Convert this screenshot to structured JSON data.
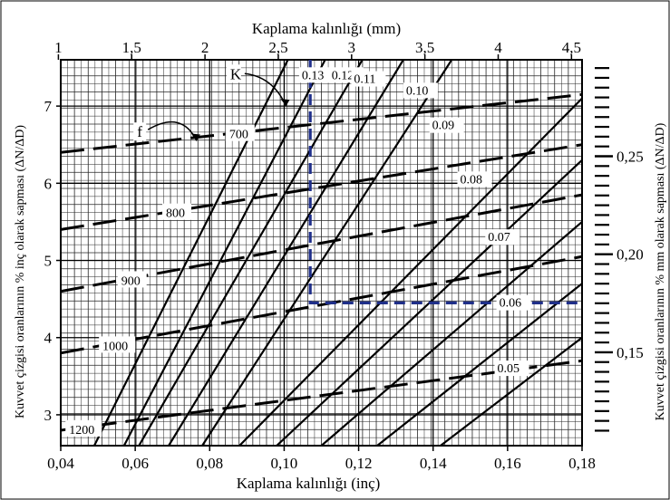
{
  "chart_data": {
    "type": "line",
    "title_top": "Kaplama kalınlığı (mm)",
    "xlabel": "Kaplama kalınlığı (inç)",
    "ylabel_left": "Kuvvet çizgisi oranlarının % inç olarak sapması (ΔN/ΔD)",
    "ylabel_right": "Kuvvet çizgisi oranlarının % mm olarak sapması (ΔN/ΔD)",
    "xlim": [
      0.04,
      0.18
    ],
    "ylim": [
      2.6,
      7.6
    ],
    "grid": true,
    "x_ticks": [
      "0,04",
      "0,06",
      "0,08",
      "0,10",
      "0,12",
      "0,14",
      "0,16",
      "0,18"
    ],
    "x_tick_values": [
      0.04,
      0.06,
      0.08,
      0.1,
      0.12,
      0.14,
      0.16,
      0.18
    ],
    "top_ticks": [
      "1",
      "1,5",
      "2",
      "2,5",
      "3",
      "3,5",
      "4",
      "4,5"
    ],
    "top_tick_values_mm": [
      1,
      1.5,
      2,
      2.5,
      3,
      3.5,
      4,
      4.5
    ],
    "y_ticks": [
      "3",
      "4",
      "5",
      "6",
      "7"
    ],
    "y_tick_values": [
      3,
      4,
      5,
      6,
      7
    ],
    "right_ticks": [
      "0,15",
      "0,20",
      "0,25"
    ],
    "right_tick_values": [
      0.15,
      0.2,
      0.25
    ],
    "solid_series": [
      {
        "label": "0.13",
        "points": [
          [
            0.049,
            2.6
          ],
          [
            0.101,
            7.6
          ]
        ]
      },
      {
        "label": "0.12",
        "points": [
          [
            0.057,
            2.6
          ],
          [
            0.111,
            7.6
          ]
        ]
      },
      {
        "label": "0.11",
        "points": [
          [
            0.061,
            2.6
          ],
          [
            0.121,
            7.6
          ]
        ]
      },
      {
        "label": "0.10",
        "points": [
          [
            0.069,
            2.6
          ],
          [
            0.132,
            7.6
          ]
        ]
      },
      {
        "label": "0.09",
        "points": [
          [
            0.078,
            2.6
          ],
          [
            0.145,
            7.6
          ]
        ]
      },
      {
        "label": "0.08",
        "points": [
          [
            0.088,
            2.6
          ],
          [
            0.18,
            7.1
          ]
        ]
      },
      {
        "label": "0.07",
        "points": [
          [
            0.098,
            2.6
          ],
          [
            0.18,
            6.3
          ]
        ]
      },
      {
        "label": "0.06",
        "points": [
          [
            0.11,
            2.6
          ],
          [
            0.18,
            5.5
          ]
        ]
      },
      {
        "label": "0.05",
        "points": [
          [
            0.125,
            2.6
          ],
          [
            0.18,
            4.7
          ]
        ]
      },
      {
        "label": "",
        "points": [
          [
            0.142,
            2.6
          ],
          [
            0.18,
            4.0
          ]
        ]
      }
    ],
    "dashed_series": [
      {
        "label": "700",
        "points": [
          [
            0.04,
            6.4
          ],
          [
            0.18,
            7.15
          ]
        ]
      },
      {
        "label": "800",
        "points": [
          [
            0.04,
            5.4
          ],
          [
            0.18,
            6.5
          ]
        ]
      },
      {
        "label": "900",
        "points": [
          [
            0.04,
            4.6
          ],
          [
            0.18,
            5.85
          ]
        ]
      },
      {
        "label": "1000",
        "points": [
          [
            0.04,
            3.8
          ],
          [
            0.18,
            5.05
          ]
        ]
      },
      {
        "label": "1200",
        "points": [
          [
            0.04,
            2.8
          ],
          [
            0.18,
            3.7
          ]
        ]
      }
    ],
    "annotations": [
      {
        "text": "K",
        "x": 0.084,
        "y": 7.3
      },
      {
        "text": "f",
        "x": 0.06,
        "y": 6.6
      }
    ],
    "guide_line": {
      "x": 0.107,
      "y_from": 7.6,
      "y_to": 4.45,
      "x_to": 0.18
    },
    "colors": {
      "solid": "#000000",
      "dashed": "#000000",
      "guide": "#1f2f8a",
      "grid": "#000000"
    }
  }
}
